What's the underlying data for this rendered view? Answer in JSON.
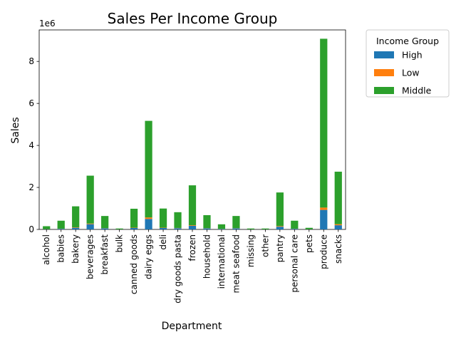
{
  "chart_data": {
    "type": "bar",
    "stacked": true,
    "title": "Sales Per Income Group",
    "xlabel": "Department",
    "ylabel": "Sales",
    "y_multiplier_label": "1e6",
    "ylim": [
      0,
      9.5
    ],
    "yticks": [
      0,
      2,
      4,
      6,
      8
    ],
    "grid": false,
    "legend_title": "Income Group",
    "legend_position": "outside-top-right",
    "categories": [
      "alcohol",
      "babies",
      "bakery",
      "beverages",
      "breakfast",
      "bulk",
      "canned goods",
      "dairy eggs",
      "deli",
      "dry goods pasta",
      "frozen",
      "household",
      "international",
      "meat seafood",
      "missing",
      "other",
      "pantry",
      "personal care",
      "pets",
      "produce",
      "snacks"
    ],
    "series": [
      {
        "name": "High",
        "color": "#1f77b4",
        "values": [
          0.01,
          0.03,
          0.08,
          0.25,
          0.05,
          0.003,
          0.07,
          0.5,
          0.07,
          0.06,
          0.17,
          0.05,
          0.02,
          0.05,
          0.003,
          0.003,
          0.13,
          0.03,
          0.006,
          0.93,
          0.2
        ]
      },
      {
        "name": "Low",
        "color": "#ff7f0e",
        "values": [
          0.003,
          0.005,
          0.02,
          0.03,
          0.01,
          0.001,
          0.015,
          0.07,
          0.015,
          0.01,
          0.03,
          0.01,
          0.004,
          0.01,
          0.001,
          0.001,
          0.03,
          0.005,
          0.001,
          0.11,
          0.05
        ]
      },
      {
        "name": "Middle",
        "color": "#2ca02c",
        "values": [
          0.14,
          0.38,
          1.0,
          2.28,
          0.58,
          0.04,
          0.9,
          4.6,
          0.91,
          0.75,
          1.9,
          0.62,
          0.22,
          0.58,
          0.04,
          0.04,
          1.6,
          0.38,
          0.07,
          8.04,
          2.5
        ]
      }
    ]
  }
}
